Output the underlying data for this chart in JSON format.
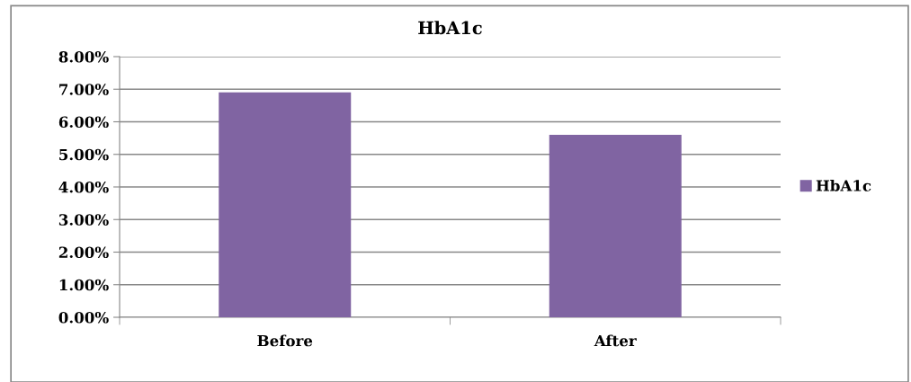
{
  "chart_data": {
    "type": "bar",
    "title": "HbA1c",
    "categories": [
      "Before",
      "After"
    ],
    "series": [
      {
        "name": "HbA1c",
        "color": "#8064a2",
        "values": [
          6.9,
          5.6
        ]
      }
    ],
    "ylim": [
      0,
      8
    ],
    "yticks": [
      {
        "value": 0,
        "label": "0.00%"
      },
      {
        "value": 1,
        "label": "1.00%"
      },
      {
        "value": 2,
        "label": "2.00%"
      },
      {
        "value": 3,
        "label": "3.00%"
      },
      {
        "value": 4,
        "label": "4.00%"
      },
      {
        "value": 5,
        "label": "5.00%"
      },
      {
        "value": 6,
        "label": "6.00%"
      },
      {
        "value": 7,
        "label": "7.00%"
      },
      {
        "value": 8,
        "label": "8.00%"
      }
    ],
    "grid": "y",
    "legend": "right"
  }
}
